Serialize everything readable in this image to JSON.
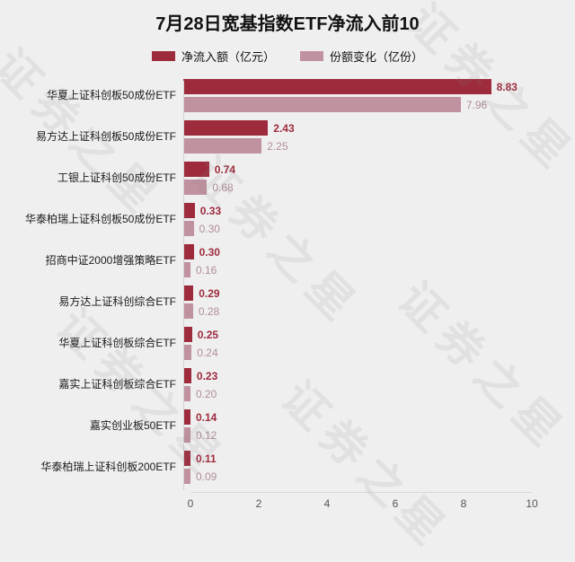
{
  "title": "7月28日宽基指数ETF净流入前10",
  "watermark": "证券之星",
  "legend": [
    {
      "label": "净流入额（亿元）",
      "color": "#9e2b3c"
    },
    {
      "label": "份额变化（亿份）",
      "color": "#c0919e"
    }
  ],
  "colors": {
    "series1_bar": "#9e2b3c",
    "series1_label": "#9e2b3c",
    "series2_bar": "#c0919e",
    "series2_label": "#b08e98",
    "tick": "#555555",
    "background": "#efeff0"
  },
  "chart_data": {
    "type": "bar",
    "orientation": "horizontal",
    "title": "7月28日宽基指数ETF净流入前10",
    "categories": [
      "华夏上证科创板50成份ETF",
      "易方达上证科创板50成份ETF",
      "工银上证科创50成份ETF",
      "华泰柏瑞上证科创板50成份ETF",
      "招商中证2000增强策略ETF",
      "易方达上证科创综合ETF",
      "华夏上证科创板综合ETF",
      "嘉实上证科创板综合ETF",
      "嘉实创业板50ETF",
      "华泰柏瑞上证科创板200ETF"
    ],
    "series": [
      {
        "name": "净流入额（亿元）",
        "color": "#9e2b3c",
        "values": [
          8.83,
          2.43,
          0.74,
          0.33,
          0.3,
          0.29,
          0.25,
          0.23,
          0.14,
          0.11
        ]
      },
      {
        "name": "份额变化（亿份）",
        "color": "#c0919e",
        "values": [
          7.96,
          2.25,
          0.68,
          0.3,
          0.16,
          0.28,
          0.24,
          0.2,
          0.12,
          0.09
        ]
      }
    ],
    "x_ticks": [
      0,
      2,
      4,
      6,
      8,
      10
    ],
    "xlim": [
      0,
      10
    ],
    "grid": false,
    "legend_position": "top"
  }
}
